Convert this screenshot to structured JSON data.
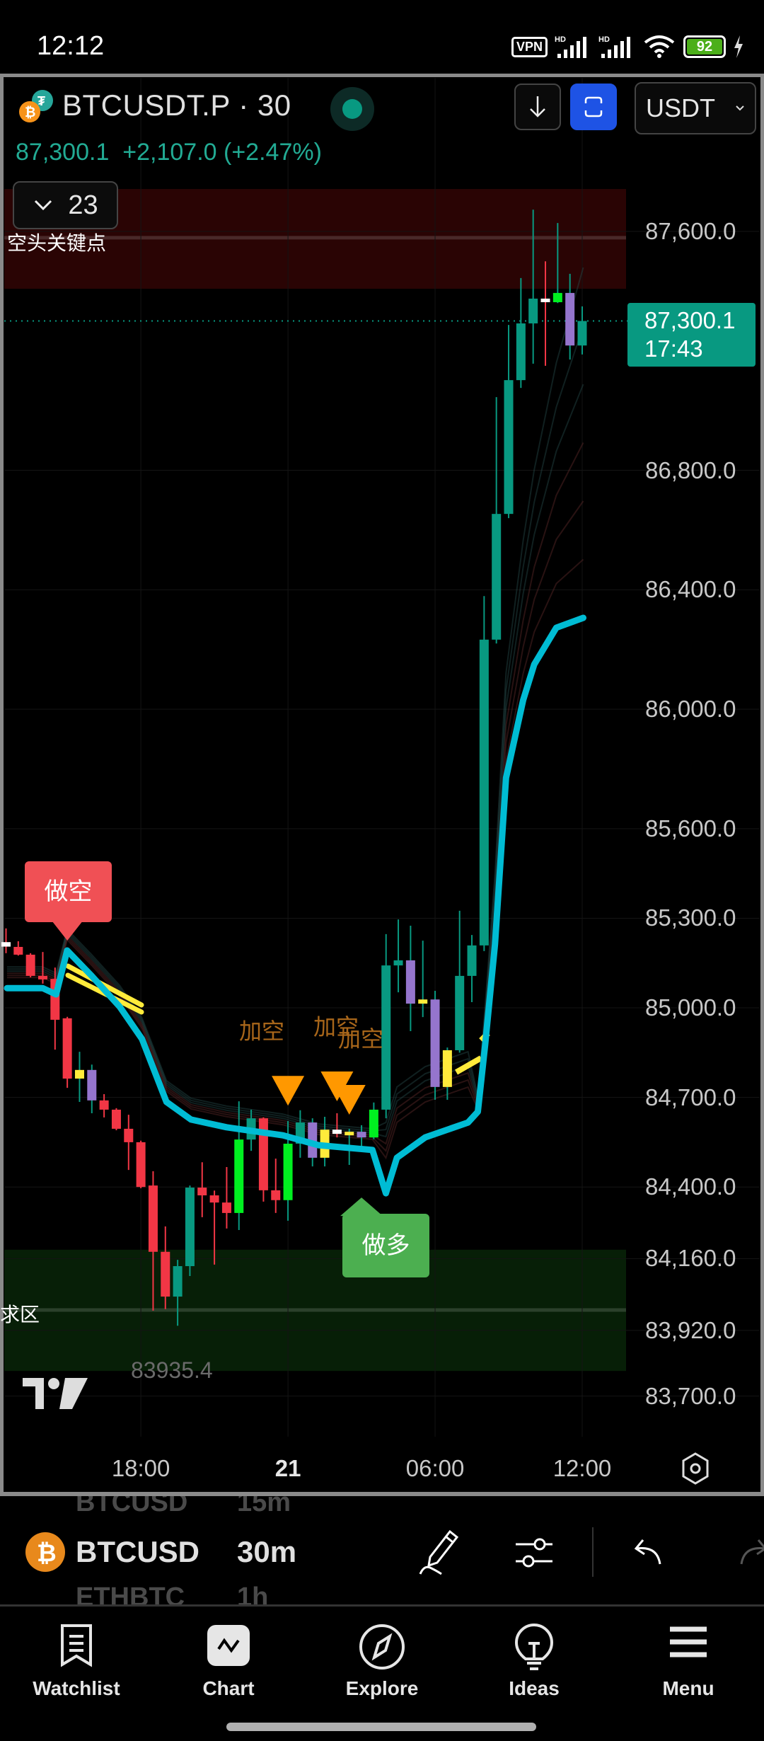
{
  "status_bar": {
    "time": "12:12",
    "vpn": "VPN",
    "net1": "HD",
    "net2": "HD",
    "battery": "92"
  },
  "header": {
    "symbol_title": "BTCUSDT.P · 30",
    "last_price": "87,300.1",
    "change": "+2,107.0 (+2.47%)",
    "currency_select": "USDT",
    "indicators_toggle_count": "23"
  },
  "price_tag": {
    "price": "87,300.1",
    "countdown": "17:43"
  },
  "annotations": {
    "resistance_zone_label": "空头关键点",
    "demand_zone_label": "求区",
    "short_signal": "做空",
    "long_signal": "做多",
    "add_short_1": "加空",
    "add_short_2": "加空",
    "add_short_3": "加空",
    "low_marker": "83935.4"
  },
  "colors": {
    "teal": "#089981",
    "red": "#f23645",
    "lime": "#00f020",
    "yellow": "#ffeb3b",
    "purple": "#9575cd",
    "white": "#ffffff",
    "ema": "#00bcd4",
    "accent_blue": "#1e53e5",
    "quote_green": "#22ab94",
    "short_box": "#f05055",
    "long_box": "#4caf50",
    "add_arrow": "#ff9800"
  },
  "chart_data": {
    "type": "candlestick",
    "symbol": "BTCUSDT.P",
    "interval": "30",
    "ylim": [
      83650,
      87780
    ],
    "y_ticks": [
      "87,600.0",
      "86,800.0",
      "86,400.0",
      "86,000.0",
      "85,600.0",
      "85,300.0",
      "85,000.0",
      "84,700.0",
      "84,400.0",
      "84,160.0",
      "83,920.0",
      "83,700.0"
    ],
    "x_ticks": [
      {
        "label": "18:00",
        "time": "18:00",
        "bold": false
      },
      {
        "label": "21",
        "time": "00:00",
        "bold": true
      },
      {
        "label": "06:00",
        "time": "06:00",
        "bold": false
      },
      {
        "label": "12:00",
        "time": "12:00",
        "bold": false
      }
    ],
    "candles_columns": [
      "time",
      "open",
      "high",
      "low",
      "close",
      "color"
    ],
    "candles": [
      [
        "12:30",
        85220,
        85266,
        85183,
        85205,
        "white"
      ],
      [
        "13:00",
        85204,
        85223,
        85175,
        85178,
        "red"
      ],
      [
        "13:30",
        85178,
        85183,
        85102,
        85107,
        "red"
      ],
      [
        "14:00",
        85107,
        85187,
        85081,
        85097,
        "red"
      ],
      [
        "14:30",
        85097,
        85135,
        84860,
        84960,
        "red"
      ],
      [
        "15:00",
        84965,
        84970,
        84732,
        84763,
        "red"
      ],
      [
        "15:30",
        84763,
        84853,
        84685,
        84792,
        "yellow"
      ],
      [
        "16:00",
        84792,
        84810,
        84647,
        84690,
        "purple"
      ],
      [
        "16:30",
        84690,
        84711,
        84633,
        84659,
        "red"
      ],
      [
        "17:00",
        84659,
        84664,
        84590,
        84595,
        "red"
      ],
      [
        "17:30",
        84595,
        84642,
        84457,
        84550,
        "red"
      ],
      [
        "18:00",
        84550,
        84555,
        84396,
        84400,
        "red"
      ],
      [
        "18:30",
        84405,
        84453,
        83986,
        84183,
        "red"
      ],
      [
        "19:00",
        84183,
        84268,
        83991,
        84033,
        "red"
      ],
      [
        "19:30",
        84033,
        84156,
        83935.4,
        84135,
        "teal"
      ],
      [
        "20:00",
        84135,
        84405,
        84102,
        84398,
        "teal"
      ],
      [
        "20:30",
        84398,
        84483,
        84299,
        84372,
        "red"
      ],
      [
        "21:00",
        84372,
        84388,
        84140,
        84348,
        "red"
      ],
      [
        "21:30",
        84348,
        84467,
        84261,
        84313,
        "red"
      ],
      [
        "22:00",
        84313,
        84687,
        84256,
        84559,
        "lime"
      ],
      [
        "22:30",
        84559,
        84659,
        84521,
        84630,
        "teal"
      ],
      [
        "23:00",
        84630,
        84633,
        84351,
        84389,
        "red"
      ],
      [
        "23:30",
        84389,
        84495,
        84313,
        84356,
        "red"
      ],
      [
        "00:00",
        84356,
        84621,
        84287,
        84545,
        "lime"
      ],
      [
        "00:30",
        84545,
        84657,
        84498,
        84616,
        "teal"
      ],
      [
        "01:00",
        84616,
        84630,
        84469,
        84498,
        "purple"
      ],
      [
        "01:30",
        84498,
        84635,
        84469,
        84592,
        "yellow"
      ],
      [
        "02:00",
        84592,
        84647,
        84566,
        84578,
        "white"
      ],
      [
        "02:30",
        84578,
        84595,
        84474,
        84585,
        "yellow"
      ],
      [
        "03:00",
        84585,
        84607,
        84536,
        84566,
        "purple"
      ],
      [
        "03:30",
        84566,
        84683,
        84560,
        84659,
        "lime"
      ],
      [
        "04:00",
        84659,
        85247,
        84630,
        85142,
        "teal"
      ],
      [
        "04:30",
        85142,
        85296,
        85052,
        85159,
        "teal"
      ],
      [
        "05:00",
        85159,
        85275,
        84922,
        85014,
        "purple"
      ],
      [
        "05:30",
        85014,
        85225,
        84969,
        85028,
        "yellow"
      ],
      [
        "06:00",
        85028,
        85057,
        84692,
        84735,
        "purple"
      ],
      [
        "06:30",
        84735,
        84867,
        84692,
        84858,
        "yellow"
      ],
      [
        "07:00",
        84858,
        85325,
        84850,
        85107,
        "teal"
      ],
      [
        "07:30",
        85107,
        85244,
        85019,
        85209,
        "teal"
      ],
      [
        "08:00",
        85209,
        86379,
        85190,
        86233,
        "teal"
      ],
      [
        "08:30",
        86233,
        87045,
        86220,
        86654,
        "teal"
      ],
      [
        "09:00",
        86654,
        87287,
        86640,
        87102,
        "teal"
      ],
      [
        "09:30",
        87102,
        87444,
        87076,
        87292,
        "teal"
      ],
      [
        "10:00",
        87292,
        87673,
        87157,
        87375,
        "teal"
      ],
      [
        "10:30",
        87375,
        87500,
        87150,
        87363,
        "white"
      ],
      [
        "11:00",
        87363,
        87628,
        87360,
        87394,
        "lime"
      ],
      [
        "11:30",
        87394,
        87458,
        87171,
        87218,
        "purple"
      ],
      [
        "12:00",
        87218,
        87349,
        87188,
        87300.1,
        "teal"
      ]
    ],
    "ema_line_bar_index_price": [
      [
        0,
        85066
      ],
      [
        2.9,
        85066
      ],
      [
        4.0,
        85045
      ],
      [
        4.9,
        85192
      ],
      [
        6.9,
        85107
      ],
      [
        9.2,
        85003
      ],
      [
        11.0,
        84896
      ],
      [
        13.0,
        84685
      ],
      [
        15.0,
        84626
      ],
      [
        17.9,
        84600
      ],
      [
        22.5,
        84573
      ],
      [
        25.4,
        84540
      ],
      [
        29.8,
        84524
      ],
      [
        30.9,
        84379
      ],
      [
        31.8,
        84498
      ],
      [
        34.1,
        84566
      ],
      [
        37.6,
        84616
      ],
      [
        38.4,
        84652
      ],
      [
        39.0,
        84877
      ],
      [
        39.8,
        85213
      ],
      [
        40.7,
        85770
      ],
      [
        42.1,
        86031
      ],
      [
        43.0,
        86150
      ],
      [
        44.8,
        86273
      ],
      [
        47.0,
        86306
      ]
    ],
    "zones": [
      {
        "name": "resistance",
        "from": 87408,
        "to": 87742,
        "mid": 87579,
        "color": "#2a0404"
      },
      {
        "name": "demand",
        "from": 83784,
        "to": 84190,
        "mid": 83988,
        "color": "#071f07"
      }
    ],
    "signals": [
      {
        "type": "short",
        "time": "15:00",
        "price": 85192
      },
      {
        "type": "long",
        "time": "03:00",
        "price": 84379
      },
      {
        "type": "add_short",
        "time": "00:00",
        "price": 84760
      },
      {
        "type": "add_short",
        "time": "02:00",
        "price": 84775
      },
      {
        "type": "add_short",
        "time": "02:30",
        "price": 84730
      }
    ],
    "last_price": 87300.1
  },
  "toolbar": {
    "prev_symbol": "BTCUSD",
    "prev_interval": "15m",
    "symbol": "BTCUSD",
    "interval": "30m",
    "next_symbol": "ETHBTC",
    "next_interval": "1h"
  },
  "nav": [
    {
      "label": "Watchlist",
      "icon": "watchlist-icon"
    },
    {
      "label": "Chart",
      "icon": "chart-icon"
    },
    {
      "label": "Explore",
      "icon": "compass-icon"
    },
    {
      "label": "Ideas",
      "icon": "lightbulb-icon"
    },
    {
      "label": "Menu",
      "icon": "hamburger-menu-icon"
    }
  ]
}
